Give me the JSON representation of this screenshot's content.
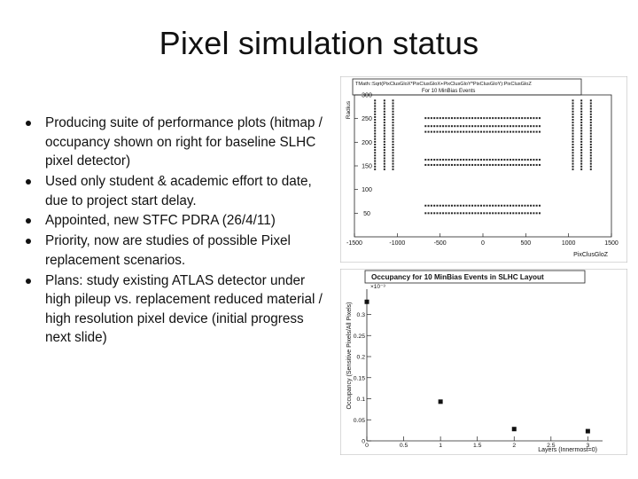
{
  "slide": {
    "title": "Pixel simulation status",
    "bullets": [
      "Producing suite of performance plots (hitmap / occupancy shown on right for baseline SLHC pixel detector)",
      "Used only student & academic effort to date, due to project start delay.",
      "Appointed, new STFC PDRA (26/4/11)",
      "Priority, now are studies of possible Pixel replacement scenarios.",
      "Plans: study existing ATLAS detector under high pileup vs. replacement reduced material / high resolution pixel device (initial progress next slide)"
    ]
  },
  "chart_data": [
    {
      "type": "scatter",
      "title": "TMath::Sqrt(PixClusGloX*PixClusGloX+PixClusGloY*PixClusGloY):PixClusGloZ",
      "subtitle": "For 10 MinBias Events",
      "xlabel": "PixClusGloZ",
      "ylabel": "Radius",
      "xlim": [
        -1500,
        1500
      ],
      "ylim": [
        0,
        300
      ],
      "xticks": [
        -1500,
        -1000,
        -500,
        0,
        500,
        1000,
        1500
      ],
      "yticks": [
        50,
        100,
        150,
        200,
        250,
        300
      ],
      "x_tick_labels": [
        "-1500",
        "-1000",
        "-500",
        "0",
        "500",
        "1000",
        "1500"
      ],
      "y_tick_labels": [
        "50",
        "100",
        "150",
        "200",
        "250",
        "300"
      ],
      "regions": [
        {
          "kind": "barrel",
          "r": 251,
          "z": [
            -680,
            680
          ]
        },
        {
          "kind": "barrel",
          "r": 234,
          "z": [
            -680,
            680
          ]
        },
        {
          "kind": "barrel",
          "r": 222,
          "z": [
            -680,
            680
          ]
        },
        {
          "kind": "barrel",
          "r": 163,
          "z": [
            -680,
            680
          ]
        },
        {
          "kind": "barrel",
          "r": 152,
          "z": [
            -680,
            680
          ]
        },
        {
          "kind": "barrel",
          "r": 66,
          "z": [
            -680,
            680
          ]
        },
        {
          "kind": "barrel",
          "r": 50,
          "z": [
            -680,
            680
          ]
        },
        {
          "kind": "disk",
          "z": 1050,
          "r": [
            140,
            290
          ]
        },
        {
          "kind": "disk",
          "z": 1150,
          "r": [
            140,
            290
          ]
        },
        {
          "kind": "disk",
          "z": 1260,
          "r": [
            140,
            290
          ]
        },
        {
          "kind": "disk",
          "z": -1050,
          "r": [
            140,
            290
          ]
        },
        {
          "kind": "disk",
          "z": -1150,
          "r": [
            140,
            290
          ]
        },
        {
          "kind": "disk",
          "z": -1260,
          "r": [
            140,
            290
          ]
        }
      ]
    },
    {
      "type": "scatter",
      "title": "Occupancy for 10 MinBias Events in SLHC Layout",
      "xlabel": "Layers (Innermost=0)",
      "ylabel": "Occupancy (Sensitive Pixels/All Pixels)",
      "exponent_label": "×10⁻³",
      "xlim": [
        0,
        3.2
      ],
      "ylim": [
        0,
        0.36
      ],
      "xticks": [
        0,
        0.5,
        1,
        1.5,
        2,
        2.5,
        3
      ],
      "yticks": [
        0,
        0.05,
        0.1,
        0.15,
        0.2,
        0.25,
        0.3
      ],
      "x_tick_labels": [
        "0",
        "0.5",
        "1",
        "1.5",
        "2",
        "2.5",
        "3"
      ],
      "y_tick_labels": [
        "0",
        "0.05",
        "0.1",
        "0.15",
        "0.2",
        "0.25",
        "0.3"
      ],
      "points": [
        {
          "x": 0,
          "y": 0.33
        },
        {
          "x": 1,
          "y": 0.093
        },
        {
          "x": 2,
          "y": 0.028
        },
        {
          "x": 3,
          "y": 0.023
        }
      ]
    }
  ]
}
